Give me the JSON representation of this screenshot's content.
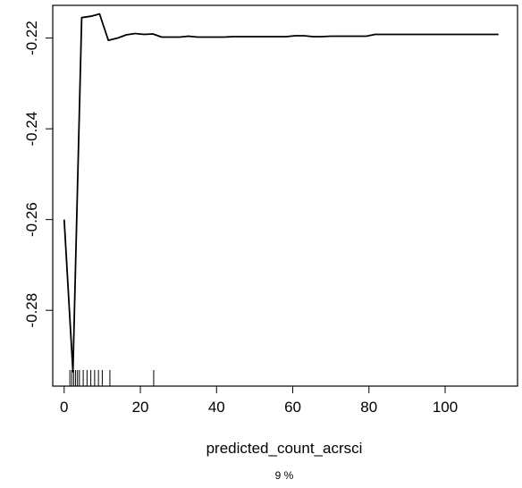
{
  "chart_data": {
    "type": "line",
    "xlabel": "predicted_count_acrsci",
    "subtitle": "9 %",
    "ylabel": "",
    "xlim": [
      -3,
      119
    ],
    "ylim": [
      -0.2967,
      -0.2128
    ],
    "x_ticks": [
      0,
      20,
      40,
      60,
      80,
      100
    ],
    "x_tick_labels": [
      "0",
      "20",
      "40",
      "60",
      "80",
      "100"
    ],
    "y_ticks": [
      -0.28,
      -0.26,
      -0.24,
      -0.22
    ],
    "y_tick_labels": [
      "-0.28",
      "-0.26",
      "-0.24",
      "-0.22"
    ],
    "grid": false,
    "legend": "none",
    "line_color": "#000000",
    "series": [
      {
        "x": [
          0,
          2.3,
          4.6,
          7,
          9.3,
          11.6,
          14,
          16.3,
          18.6,
          21,
          23.3,
          25.6,
          28,
          30.3,
          32.6,
          35,
          37.3,
          39.6,
          42,
          44.3,
          46.6,
          49,
          51.3,
          53.6,
          56,
          58.3,
          60.6,
          63,
          65.3,
          67.6,
          70,
          72.3,
          74.6,
          77,
          79.3,
          81.6,
          84,
          86.3,
          88.6,
          91,
          93.3,
          95.6,
          98,
          100.3,
          102.6,
          105,
          107.3,
          109.6,
          112,
          114
        ],
        "y": [
          -0.26,
          -0.2935,
          -0.2155,
          -0.2152,
          -0.2147,
          -0.2205,
          -0.22,
          -0.2193,
          -0.219,
          -0.2192,
          -0.2191,
          -0.2198,
          -0.2198,
          -0.2198,
          -0.2196,
          -0.2198,
          -0.2198,
          -0.2198,
          -0.2198,
          -0.2197,
          -0.2197,
          -0.2197,
          -0.2197,
          -0.2197,
          -0.2197,
          -0.2197,
          -0.2195,
          -0.2195,
          -0.2197,
          -0.2197,
          -0.2196,
          -0.2196,
          -0.2196,
          -0.2196,
          -0.2196,
          -0.2192,
          -0.2192,
          -0.2192,
          -0.2192,
          -0.2192,
          -0.2192,
          -0.2192,
          -0.2192,
          -0.2192,
          -0.2192,
          -0.2192,
          -0.2192,
          -0.2192,
          -0.2192,
          -0.2192
        ]
      }
    ],
    "rug_x": [
      1.5,
      2,
      2.5,
      3,
      3.5,
      4,
      5,
      6,
      7,
      8,
      9,
      10,
      12,
      23.5
    ]
  }
}
